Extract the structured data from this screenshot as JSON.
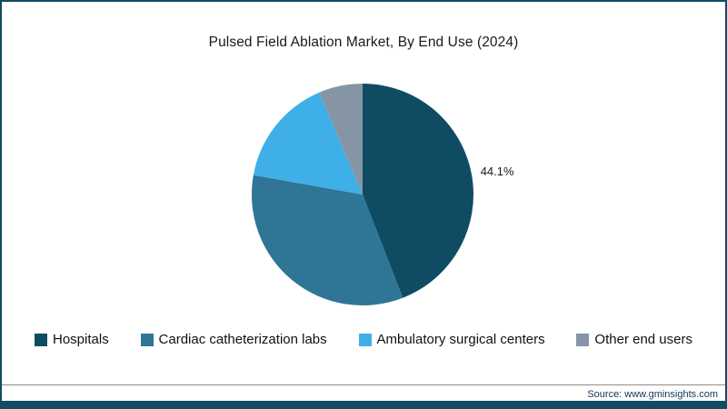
{
  "chart_data": {
    "type": "pie",
    "title": "Pulsed Field Ablation Market, By End Use (2024)",
    "start_angle_deg": -90,
    "direction": "clockwise",
    "legend_position": "bottom",
    "slices": [
      {
        "id": "hospitals",
        "name": "Hospitals",
        "value": 44.1,
        "color": "#0f4c64",
        "label": "44.1%"
      },
      {
        "id": "cardiac-catheterization-labs",
        "name": "Cardiac catheterization labs",
        "value": 33.7,
        "color": "#2e7596",
        "label": ""
      },
      {
        "id": "ambulatory-surgical-centers",
        "name": "Ambulatory surgical centers",
        "value": 15.8,
        "color": "#3fafe8",
        "label": ""
      },
      {
        "id": "other-end-users",
        "name": "Other end users",
        "value": 6.4,
        "color": "#8695a6",
        "label": ""
      }
    ]
  },
  "footer": {
    "source": "Source: www.gminsights.com"
  },
  "frame": {
    "border_color": "#0f4c64",
    "background_color": "#ffffff"
  }
}
